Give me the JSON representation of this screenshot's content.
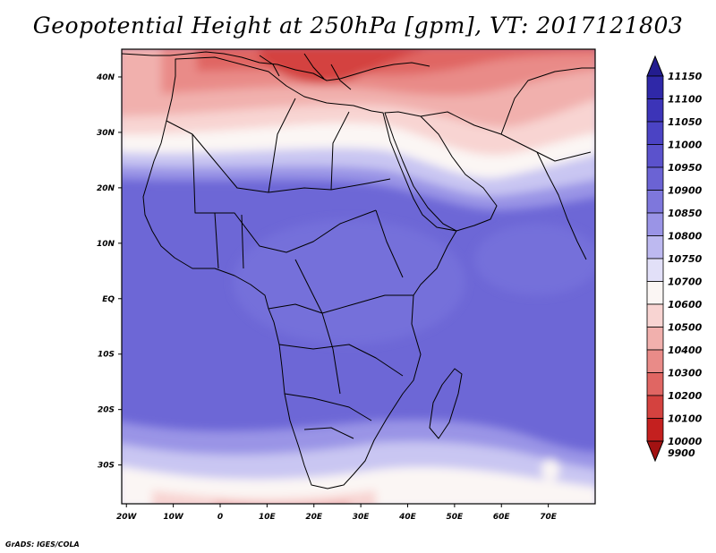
{
  "title": "Geopotential Height at 250hPa [gpm], VT: 2017121803",
  "credit": "GrADS: IGES/COLA",
  "chart_data": {
    "type": "filled-contour-map",
    "variable": "Geopotential Height",
    "level": "250hPa",
    "units": "gpm",
    "valid_time": "2017121803",
    "lon_range": [
      -21,
      80
    ],
    "lat_range": [
      -37,
      45
    ],
    "lon_ticks": [
      {
        "value": -20,
        "label": "20W"
      },
      {
        "value": -10,
        "label": "10W"
      },
      {
        "value": 0,
        "label": "0"
      },
      {
        "value": 10,
        "label": "10E"
      },
      {
        "value": 20,
        "label": "20E"
      },
      {
        "value": 30,
        "label": "30E"
      },
      {
        "value": 40,
        "label": "40E"
      },
      {
        "value": 50,
        "label": "50E"
      },
      {
        "value": 60,
        "label": "60E"
      },
      {
        "value": 70,
        "label": "70E"
      }
    ],
    "lat_ticks": [
      {
        "value": 40,
        "label": "40N"
      },
      {
        "value": 30,
        "label": "30N"
      },
      {
        "value": 20,
        "label": "20N"
      },
      {
        "value": 10,
        "label": "10N"
      },
      {
        "value": 0,
        "label": "EQ"
      },
      {
        "value": -10,
        "label": "10S"
      },
      {
        "value": -20,
        "label": "20S"
      },
      {
        "value": -30,
        "label": "30S"
      }
    ],
    "colorbar": {
      "levels": [
        "11150",
        "11100",
        "11050",
        "11000",
        "10950",
        "10900",
        "10850",
        "10800",
        "10750",
        "10700",
        "10600",
        "10500",
        "10400",
        "10300",
        "10200",
        "10100",
        "10000",
        "9900"
      ],
      "colors": [
        "#231c8f",
        "#2f28a8",
        "#3c34b8",
        "#4b43c4",
        "#5b52cc",
        "#6b63d4",
        "#7e77dc",
        "#9a94e6",
        "#bdb9f0",
        "#e2e0f8",
        "#fbf6f4",
        "#f8d4d2",
        "#f1b0ad",
        "#e98b88",
        "#e06663",
        "#d4423f",
        "#c4201f",
        "#a31212"
      ]
    }
  }
}
